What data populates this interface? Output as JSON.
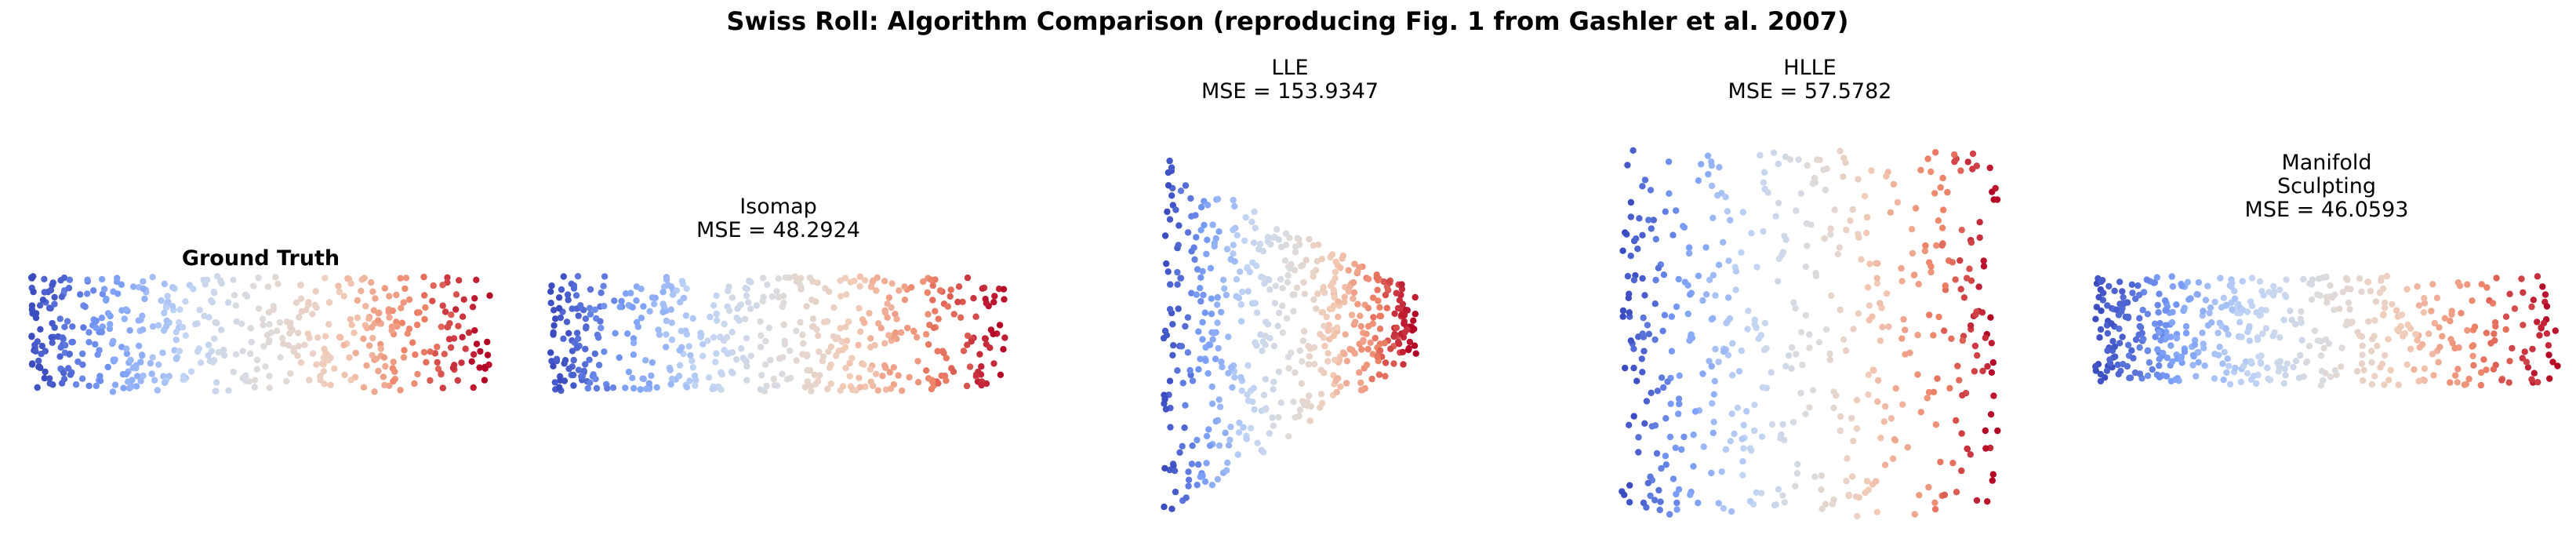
{
  "figure": {
    "suptitle": "Swiss Roll: Algorithm Comparison (reproducing Fig. 1 from Gashler et al. 2007)"
  },
  "colormap": {
    "name": "coolwarm",
    "stops": [
      "#3b4cc0",
      "#7b9ff9",
      "#c0d4f5",
      "#dddcdc",
      "#f2cbb7",
      "#ee8468",
      "#b40426"
    ]
  },
  "chart_data": [
    {
      "type": "scatter",
      "title": "Ground Truth",
      "title_lines": [
        "Ground Truth"
      ],
      "axes": "off",
      "color_encoding": "coolwarm by horizontal position along the unrolled manifold",
      "shape": "rectangle",
      "n_points": 520,
      "xlim": [
        0,
        1
      ],
      "ylim": [
        0,
        1
      ],
      "point_extent": {
        "x": [
          0,
          1
        ],
        "y": [
          0.38,
          0.62
        ]
      }
    },
    {
      "type": "scatter",
      "title": "Isomap\nMSE = 48.2924",
      "title_lines": [
        "Isomap",
        "MSE = 48.2924"
      ],
      "method": "Isomap",
      "mse": 48.2924,
      "axes": "off",
      "shape": "rectangle",
      "n_points": 520,
      "xlim": [
        0,
        1
      ],
      "ylim": [
        0,
        1
      ],
      "point_extent": {
        "x": [
          0,
          1
        ],
        "y": [
          0.38,
          0.62
        ]
      }
    },
    {
      "type": "scatter",
      "title": "LLE\nMSE = 153.9347",
      "title_lines": [
        "LLE",
        "MSE = 153.9347"
      ],
      "method": "LLE",
      "mse": 153.9347,
      "axes": "off",
      "shape": "funnel",
      "n_points": 520,
      "xlim": [
        0,
        1
      ],
      "ylim": [
        0,
        1
      ],
      "point_extent": {
        "x": [
          0,
          1
        ],
        "y": [
          0,
          1
        ]
      }
    },
    {
      "type": "scatter",
      "title": "HLLE\nMSE = 57.5782",
      "title_lines": [
        "HLLE",
        "MSE = 57.5782"
      ],
      "method": "HLLE",
      "mse": 57.5782,
      "axes": "off",
      "shape": "square",
      "n_points": 520,
      "xlim": [
        0,
        1
      ],
      "ylim": [
        0,
        1
      ],
      "point_extent": {
        "x": [
          0,
          1
        ],
        "y": [
          0,
          1
        ]
      }
    },
    {
      "type": "scatter",
      "title": "Manifold\nSculpting\nMSE = 46.0593",
      "title_lines": [
        "Manifold",
        "Sculpting",
        "MSE = 46.0593"
      ],
      "method": "Manifold Sculpting",
      "mse": 46.0593,
      "axes": "off",
      "shape": "rectangle",
      "n_points": 520,
      "xlim": [
        0,
        1
      ],
      "ylim": [
        0,
        1
      ],
      "point_extent": {
        "x": [
          0,
          1
        ],
        "y": [
          0.38,
          0.62
        ]
      }
    }
  ]
}
